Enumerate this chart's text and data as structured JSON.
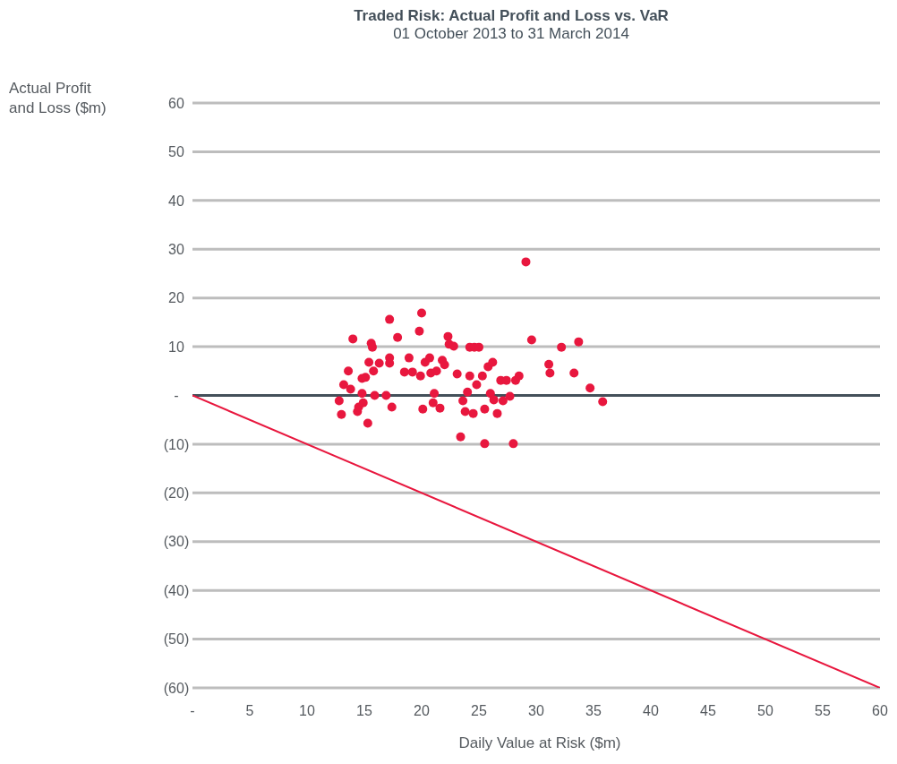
{
  "chart_data": {
    "type": "scatter",
    "title": "Traded Risk: Actual Profit and Loss vs. VaR",
    "subtitle": "01 October 2013 to 31 March 2014",
    "xlabel": "Daily Value at Risk ($m)",
    "ylabel": "Actual Profit and Loss ($m)",
    "xlim": [
      0,
      60
    ],
    "xticks": [
      {
        "value": 0,
        "label": "-"
      },
      5,
      10,
      15,
      20,
      25,
      30,
      35,
      40,
      45,
      50,
      55,
      60
    ],
    "ylim": [
      -60,
      60
    ],
    "yticks": [
      {
        "value": -60,
        "label": "(60)"
      },
      {
        "value": -50,
        "label": "(50)"
      },
      {
        "value": -40,
        "label": "(40)"
      },
      {
        "value": -30,
        "label": "(30)"
      },
      {
        "value": -20,
        "label": "(20)"
      },
      {
        "value": -10,
        "label": "(10)"
      },
      {
        "value": 0,
        "label": "-"
      },
      10,
      20,
      30,
      40,
      50,
      60
    ],
    "grid": "y",
    "ref_lines": [
      {
        "axis": "y",
        "value": 0,
        "color": "#44505a"
      }
    ],
    "series": [
      {
        "color": "#e8173e",
        "marker": "circle",
        "x": [
          12.8,
          13.0,
          13.2,
          13.6,
          14.0,
          13.8,
          14.4,
          14.5,
          14.8,
          14.8,
          14.9,
          15.1,
          15.3,
          15.4,
          15.6,
          15.7,
          15.8,
          15.9,
          16.3,
          16.9,
          17.2,
          17.4,
          17.2,
          17.2,
          17.9,
          18.5,
          18.9,
          19.2,
          19.8,
          20.0,
          19.9,
          20.1,
          20.3,
          20.7,
          20.8,
          21.0,
          21.1,
          21.3,
          21.6,
          21.8,
          22.0,
          22.3,
          22.4,
          22.8,
          23.1,
          23.4,
          23.6,
          23.8,
          24.0,
          24.2,
          24.2,
          24.5,
          24.6,
          25.0,
          24.8,
          25.3,
          25.5,
          25.5,
          25.8,
          26.2,
          26.0,
          26.3,
          26.6,
          26.9,
          27.1,
          27.4,
          27.7,
          28.0,
          28.2,
          28.5,
          29.1,
          29.6,
          31.1,
          31.2,
          32.2,
          33.3,
          33.7,
          34.7,
          35.8
        ],
        "values": [
          -1.1,
          -3.9,
          2.2,
          5.0,
          11.6,
          1.3,
          -3.3,
          -2.4,
          0.4,
          3.5,
          -1.5,
          3.7,
          -5.7,
          6.8,
          10.7,
          9.9,
          5.0,
          0.0,
          6.6,
          0.0,
          15.6,
          -2.4,
          7.7,
          6.6,
          11.9,
          4.8,
          7.7,
          4.8,
          13.2,
          16.9,
          4.0,
          -2.8,
          6.8,
          7.7,
          4.6,
          -1.5,
          0.4,
          5.0,
          -2.6,
          7.2,
          6.3,
          12.1,
          10.5,
          10.1,
          4.4,
          -8.5,
          -1.1,
          -3.3,
          0.7,
          9.9,
          4.0,
          -3.7,
          9.9,
          9.9,
          2.2,
          4.0,
          -9.9,
          -2.8,
          5.9,
          6.8,
          0.4,
          -0.9,
          -3.7,
          3.1,
          -1.1,
          3.1,
          -0.2,
          -9.9,
          3.1,
          4.0,
          27.4,
          11.4,
          6.4,
          4.6,
          9.9,
          4.6,
          11.0,
          1.5,
          -1.3
        ]
      },
      {
        "type": "line",
        "color": "#e8173e",
        "marker": "none",
        "x": [
          0,
          60
        ],
        "values": [
          0,
          -60
        ]
      }
    ]
  }
}
